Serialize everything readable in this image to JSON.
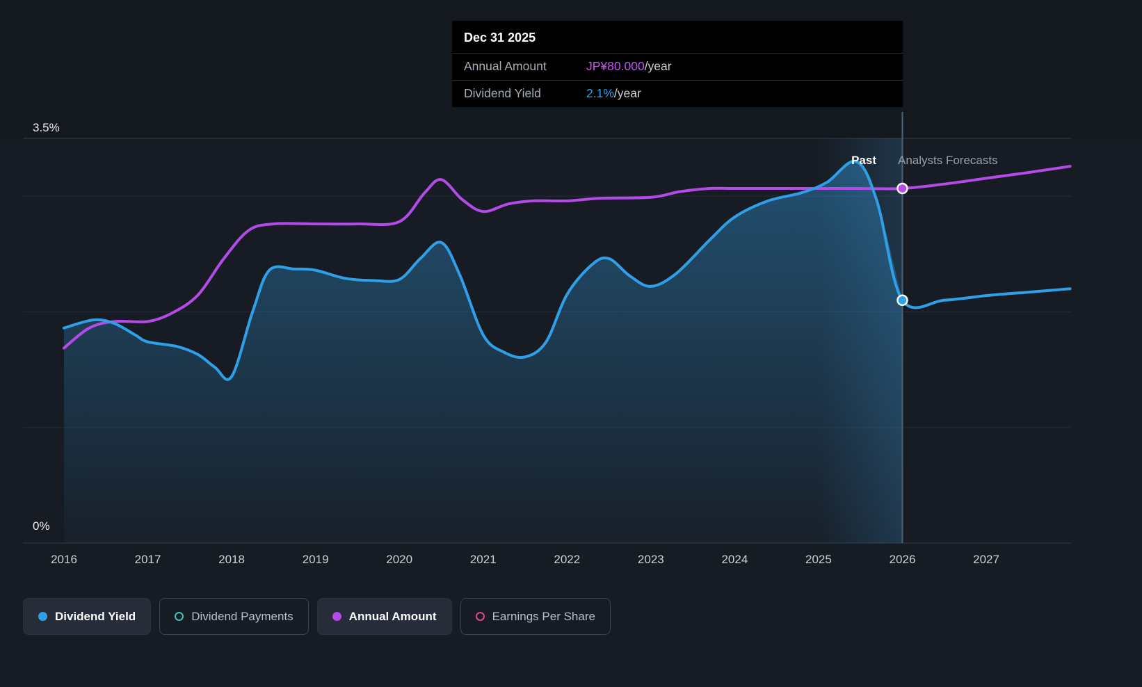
{
  "app": {
    "background": "#171c24"
  },
  "tooltip": {
    "title": "Dec 31 2025",
    "rows": [
      {
        "label": "Annual Amount",
        "value": "JP¥80.000",
        "suffix": "/year",
        "color": "#c058f2"
      },
      {
        "label": "Dividend Yield",
        "value": "2.1%",
        "suffix": "/year",
        "color": "#2f9fe8"
      }
    ]
  },
  "annotations": {
    "past": "Past",
    "forecast": "Analysts Forecasts"
  },
  "axes": {
    "y_top_label": "3.5%",
    "y_bottom_label": "0%",
    "x_ticks": [
      "2016",
      "2017",
      "2018",
      "2019",
      "2020",
      "2021",
      "2022",
      "2023",
      "2024",
      "2025",
      "2026",
      "2027"
    ]
  },
  "legend": [
    {
      "label": "Dividend Yield",
      "color": "#2f9fe8",
      "marker": "filled",
      "active": true
    },
    {
      "label": "Dividend Payments",
      "color": "#3ec6b8",
      "marker": "outline",
      "active": false
    },
    {
      "label": "Annual Amount",
      "color": "#b44ae8",
      "marker": "filled",
      "active": true
    },
    {
      "label": "Earnings Per Share",
      "color": "#e0478f",
      "marker": "outline",
      "active": false
    }
  ],
  "chart_data": {
    "type": "area",
    "title": "Dividend Yield and Annual Amount — past and analyst forecasts",
    "x_range": [
      2015.51,
      2028.01
    ],
    "x_ticks": [
      2016,
      2017,
      2018,
      2019,
      2020,
      2021,
      2022,
      2023,
      2024,
      2025,
      2026,
      2027
    ],
    "y_axis": {
      "unit": "%",
      "min": 0,
      "max": 3.5,
      "gridlines_pct": [
        0,
        1,
        2,
        3,
        3.5
      ],
      "label_top": "3.5%",
      "label_bottom": "0%"
    },
    "forecast_boundary_x": 2026,
    "highlight_band_x": [
      2025,
      2026
    ],
    "legend_position": "bottom",
    "series": [
      {
        "name": "Dividend Yield",
        "unit": "%",
        "color": "#2f9fe8",
        "scale_max": 3.5,
        "area": true,
        "area_end_x": 2026,
        "points": [
          [
            2016.0,
            1.86
          ],
          [
            2016.35,
            1.93
          ],
          [
            2016.6,
            1.9
          ],
          [
            2016.85,
            1.8
          ],
          [
            2017.0,
            1.74
          ],
          [
            2017.35,
            1.7
          ],
          [
            2017.6,
            1.63
          ],
          [
            2017.8,
            1.52
          ],
          [
            2018.0,
            1.44
          ],
          [
            2018.25,
            2.0
          ],
          [
            2018.45,
            2.36
          ],
          [
            2018.75,
            2.37
          ],
          [
            2019.0,
            2.36
          ],
          [
            2019.35,
            2.29
          ],
          [
            2019.7,
            2.27
          ],
          [
            2020.0,
            2.28
          ],
          [
            2020.25,
            2.46
          ],
          [
            2020.5,
            2.6
          ],
          [
            2020.72,
            2.32
          ],
          [
            2021.0,
            1.8
          ],
          [
            2021.25,
            1.65
          ],
          [
            2021.5,
            1.61
          ],
          [
            2021.75,
            1.74
          ],
          [
            2022.0,
            2.15
          ],
          [
            2022.3,
            2.41
          ],
          [
            2022.5,
            2.46
          ],
          [
            2022.75,
            2.31
          ],
          [
            2023.0,
            2.22
          ],
          [
            2023.3,
            2.33
          ],
          [
            2023.7,
            2.62
          ],
          [
            2024.0,
            2.82
          ],
          [
            2024.4,
            2.96
          ],
          [
            2024.8,
            3.03
          ],
          [
            2025.1,
            3.12
          ],
          [
            2025.45,
            3.3
          ],
          [
            2025.7,
            2.95
          ],
          [
            2026.0,
            2.1
          ],
          [
            2026.5,
            2.1
          ],
          [
            2027.0,
            2.14
          ],
          [
            2027.5,
            2.17
          ],
          [
            2028.0,
            2.2
          ]
        ]
      },
      {
        "name": "Annual Amount",
        "unit": "JP¥/year",
        "color": "#b44ae8",
        "scale_max": 91.3,
        "area": false,
        "points": [
          [
            2016.0,
            44
          ],
          [
            2016.3,
            48.5
          ],
          [
            2016.6,
            50
          ],
          [
            2017.0,
            50
          ],
          [
            2017.3,
            52
          ],
          [
            2017.6,
            56
          ],
          [
            2017.9,
            64
          ],
          [
            2018.2,
            70.5
          ],
          [
            2018.5,
            72
          ],
          [
            2019.0,
            72
          ],
          [
            2019.5,
            72
          ],
          [
            2020.0,
            72.5
          ],
          [
            2020.3,
            79
          ],
          [
            2020.5,
            82
          ],
          [
            2020.75,
            77.5
          ],
          [
            2021.0,
            74.8
          ],
          [
            2021.3,
            76.5
          ],
          [
            2021.6,
            77.2
          ],
          [
            2022.0,
            77.2
          ],
          [
            2022.4,
            77.8
          ],
          [
            2023.0,
            78
          ],
          [
            2023.35,
            79.3
          ],
          [
            2023.7,
            80
          ],
          [
            2024.0,
            80
          ],
          [
            2024.5,
            80
          ],
          [
            2025.0,
            80
          ],
          [
            2025.5,
            80
          ],
          [
            2026.0,
            80
          ],
          [
            2026.5,
            81
          ],
          [
            2027.0,
            82.3
          ],
          [
            2027.5,
            83.6
          ],
          [
            2028.0,
            85
          ]
        ]
      }
    ],
    "markers": [
      {
        "series": "Annual Amount",
        "x": 2026,
        "value": 80,
        "label": "JP¥80.000/year"
      },
      {
        "series": "Dividend Yield",
        "x": 2026,
        "value": 2.1,
        "label": "2.1%/year"
      }
    ]
  }
}
